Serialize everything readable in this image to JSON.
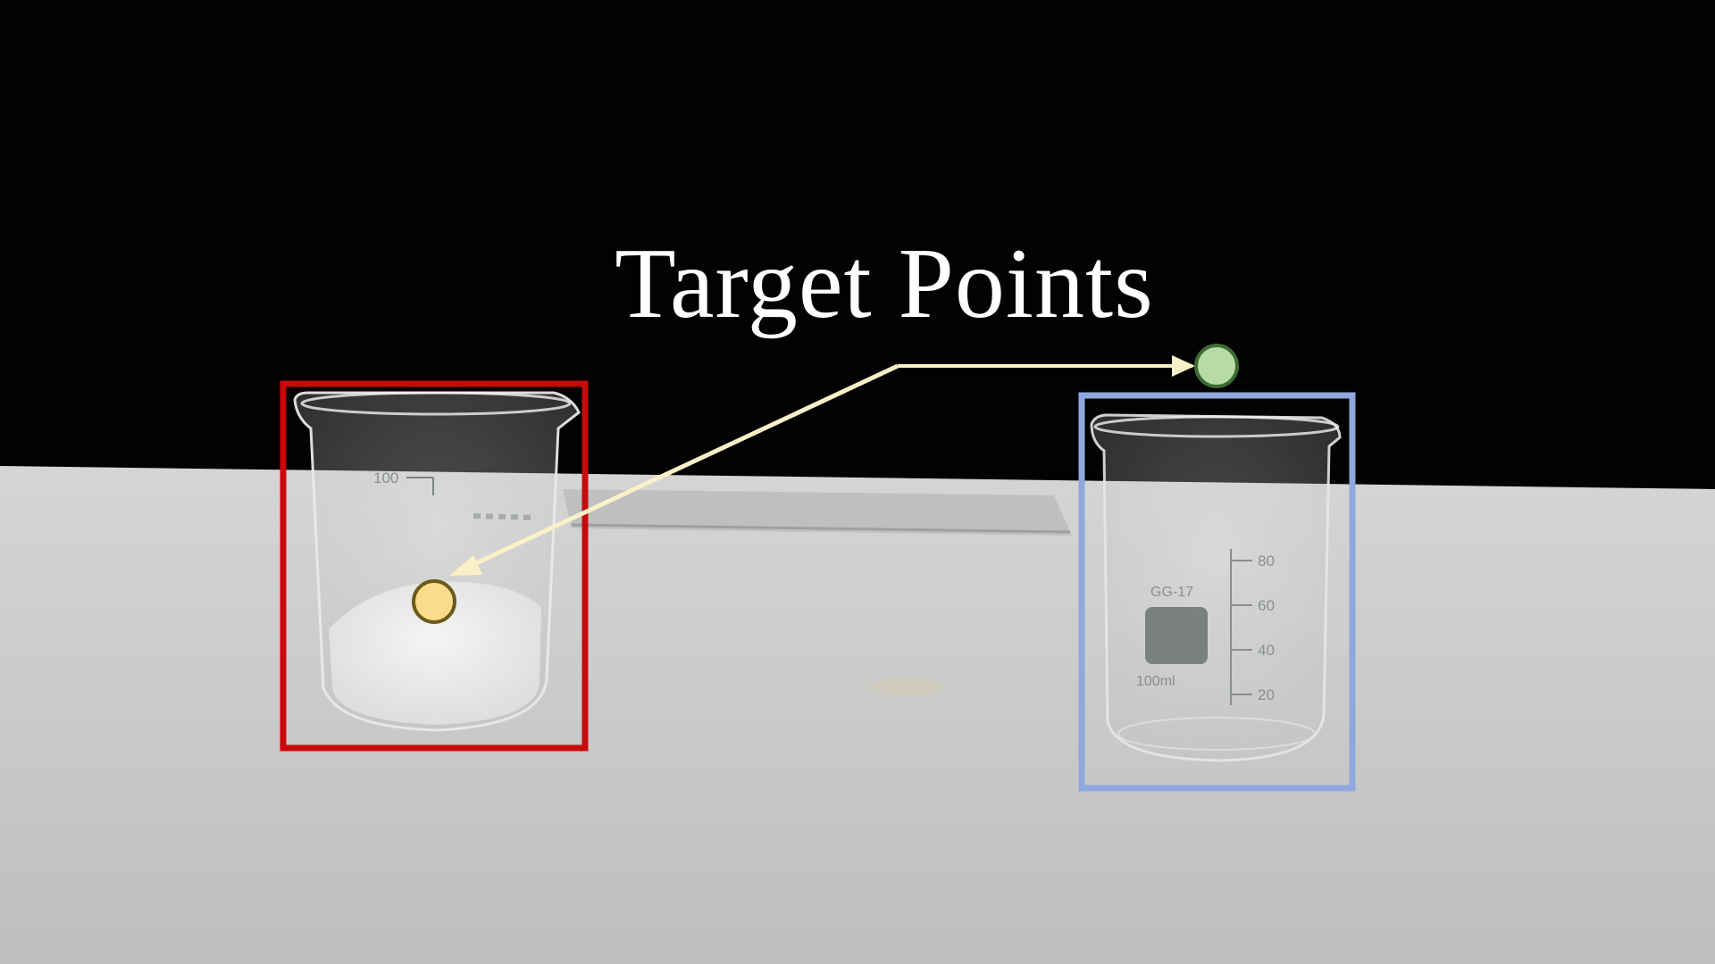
{
  "annotation": {
    "title": "Target Points"
  },
  "colors": {
    "background_top": "#020202",
    "table": "#c8c9c8",
    "source_box": "#c80a0a",
    "target_box": "#8fa8df",
    "source_point_fill": "#fbdb8c",
    "source_point_stroke": "#6b5a1a",
    "target_point_fill": "#b7dba6",
    "target_point_stroke": "#3f6b33",
    "arrow": "#fbf0c8"
  },
  "objects": {
    "source_beaker": {
      "marking": "100"
    },
    "target_beaker": {
      "brand_text": "GG-17",
      "volume_text": "100ml",
      "scale": [
        "80",
        "60",
        "40",
        "20"
      ]
    }
  }
}
